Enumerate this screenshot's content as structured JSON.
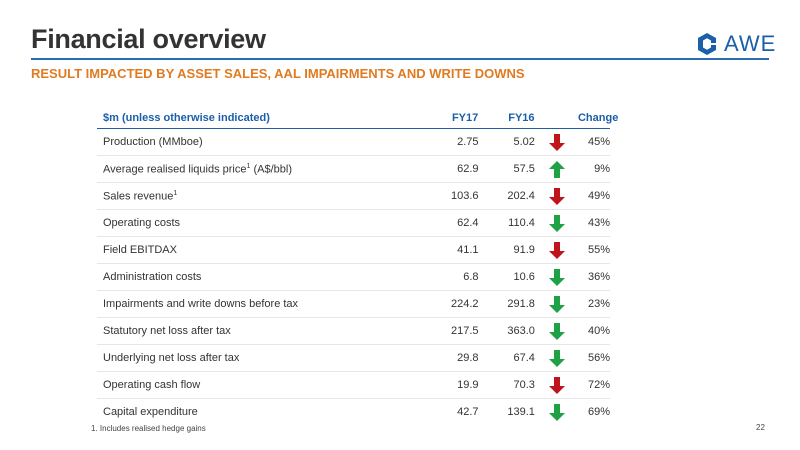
{
  "title": "Financial overview",
  "subtitle": "RESULT IMPACTED BY ASSET SALES, AAL IMPAIRMENTS AND WRITE DOWNS",
  "logo": {
    "text": "AWE",
    "color": "#1a5fa8"
  },
  "colors": {
    "accent": "#1a5fa8",
    "subtitle": "#e07b22",
    "up": "#1fa246",
    "down": "#c0141c"
  },
  "table": {
    "headers": {
      "label": "$m (unless otherwise indicated)",
      "fy17": "FY17",
      "fy16": "FY16",
      "change": "Change"
    },
    "rows": [
      {
        "label": "Production (MMboe)",
        "sup": "",
        "label_suffix": "",
        "fy17": "2.75",
        "fy16": "5.02",
        "arrow": "down-red-icon",
        "change": "45%"
      },
      {
        "label": "Average realised liquids price",
        "sup": "1",
        "label_suffix": " (A$/bbl)",
        "fy17": "62.9",
        "fy16": "57.5",
        "arrow": "up-green-icon",
        "change": "9%"
      },
      {
        "label": "Sales revenue",
        "sup": "1",
        "label_suffix": "",
        "fy17": "103.6",
        "fy16": "202.4",
        "arrow": "down-red-icon",
        "change": "49%"
      },
      {
        "label": "Operating costs",
        "sup": "",
        "label_suffix": "",
        "fy17": "62.4",
        "fy16": "110.4",
        "arrow": "down-green-icon",
        "change": "43%"
      },
      {
        "label": "Field EBITDAX",
        "sup": "",
        "label_suffix": "",
        "fy17": "41.1",
        "fy16": "91.9",
        "arrow": "down-red-icon",
        "change": "55%"
      },
      {
        "label": "Administration costs",
        "sup": "",
        "label_suffix": "",
        "fy17": "6.8",
        "fy16": "10.6",
        "arrow": "down-green-icon",
        "change": "36%"
      },
      {
        "label": "Impairments and write downs before tax",
        "sup": "",
        "label_suffix": "",
        "fy17": "224.2",
        "fy16": "291.8",
        "arrow": "down-green-icon",
        "change": "23%"
      },
      {
        "label": "Statutory net loss after tax",
        "sup": "",
        "label_suffix": "",
        "fy17": "217.5",
        "fy16": "363.0",
        "arrow": "down-green-icon",
        "change": "40%"
      },
      {
        "label": "Underlying net loss after tax",
        "sup": "",
        "label_suffix": "",
        "fy17": "29.8",
        "fy16": "67.4",
        "arrow": "down-green-icon",
        "change": "56%"
      },
      {
        "label": "Operating cash flow",
        "sup": "",
        "label_suffix": "",
        "fy17": "19.9",
        "fy16": "70.3",
        "arrow": "down-red-icon",
        "change": "72%"
      },
      {
        "label": "Capital expenditure",
        "sup": "",
        "label_suffix": "",
        "fy17": "42.7",
        "fy16": "139.1",
        "arrow": "down-green-icon",
        "change": "69%"
      }
    ]
  },
  "footnote": "1. Includes realised hedge gains",
  "page_number": "22"
}
